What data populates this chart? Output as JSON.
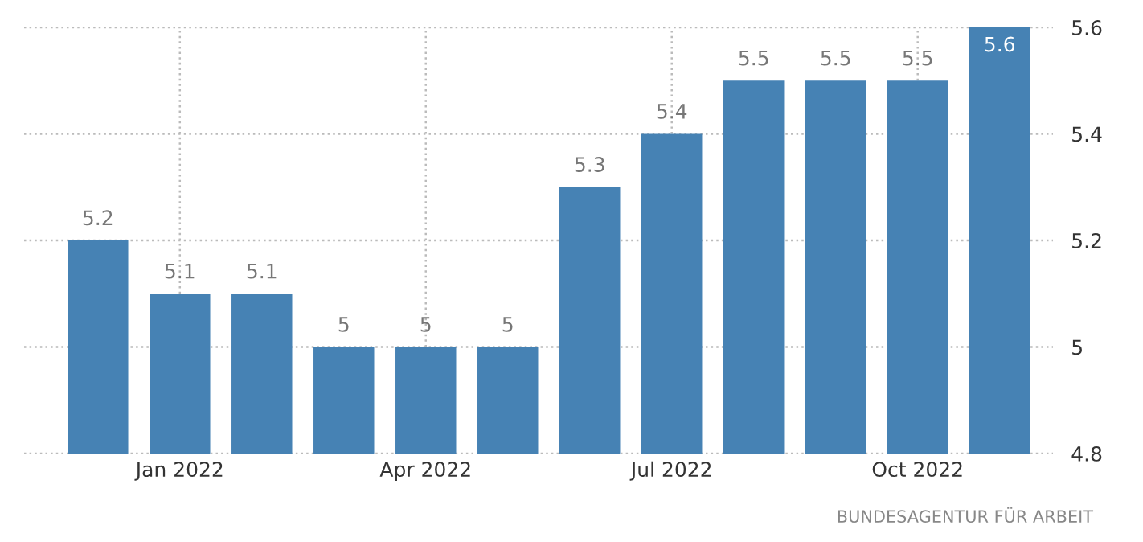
{
  "chart_data": {
    "type": "bar",
    "categories": [
      null,
      "Jan 2022",
      null,
      null,
      "Apr 2022",
      null,
      null,
      "Jul 2022",
      null,
      null,
      "Oct 2022",
      null
    ],
    "values": [
      5.2,
      5.1,
      5.1,
      5,
      5,
      5,
      5.3,
      5.4,
      5.5,
      5.5,
      5.5,
      5.6
    ],
    "color": "#4682b4",
    "ylim": [
      4.8,
      5.6
    ],
    "yticks": [
      4.8,
      5,
      5.2,
      5.4,
      5.6
    ],
    "grid": true,
    "data_labels": true,
    "annotations": [
      "BUNDESAGENTUR FÜR ARBEIT"
    ]
  }
}
